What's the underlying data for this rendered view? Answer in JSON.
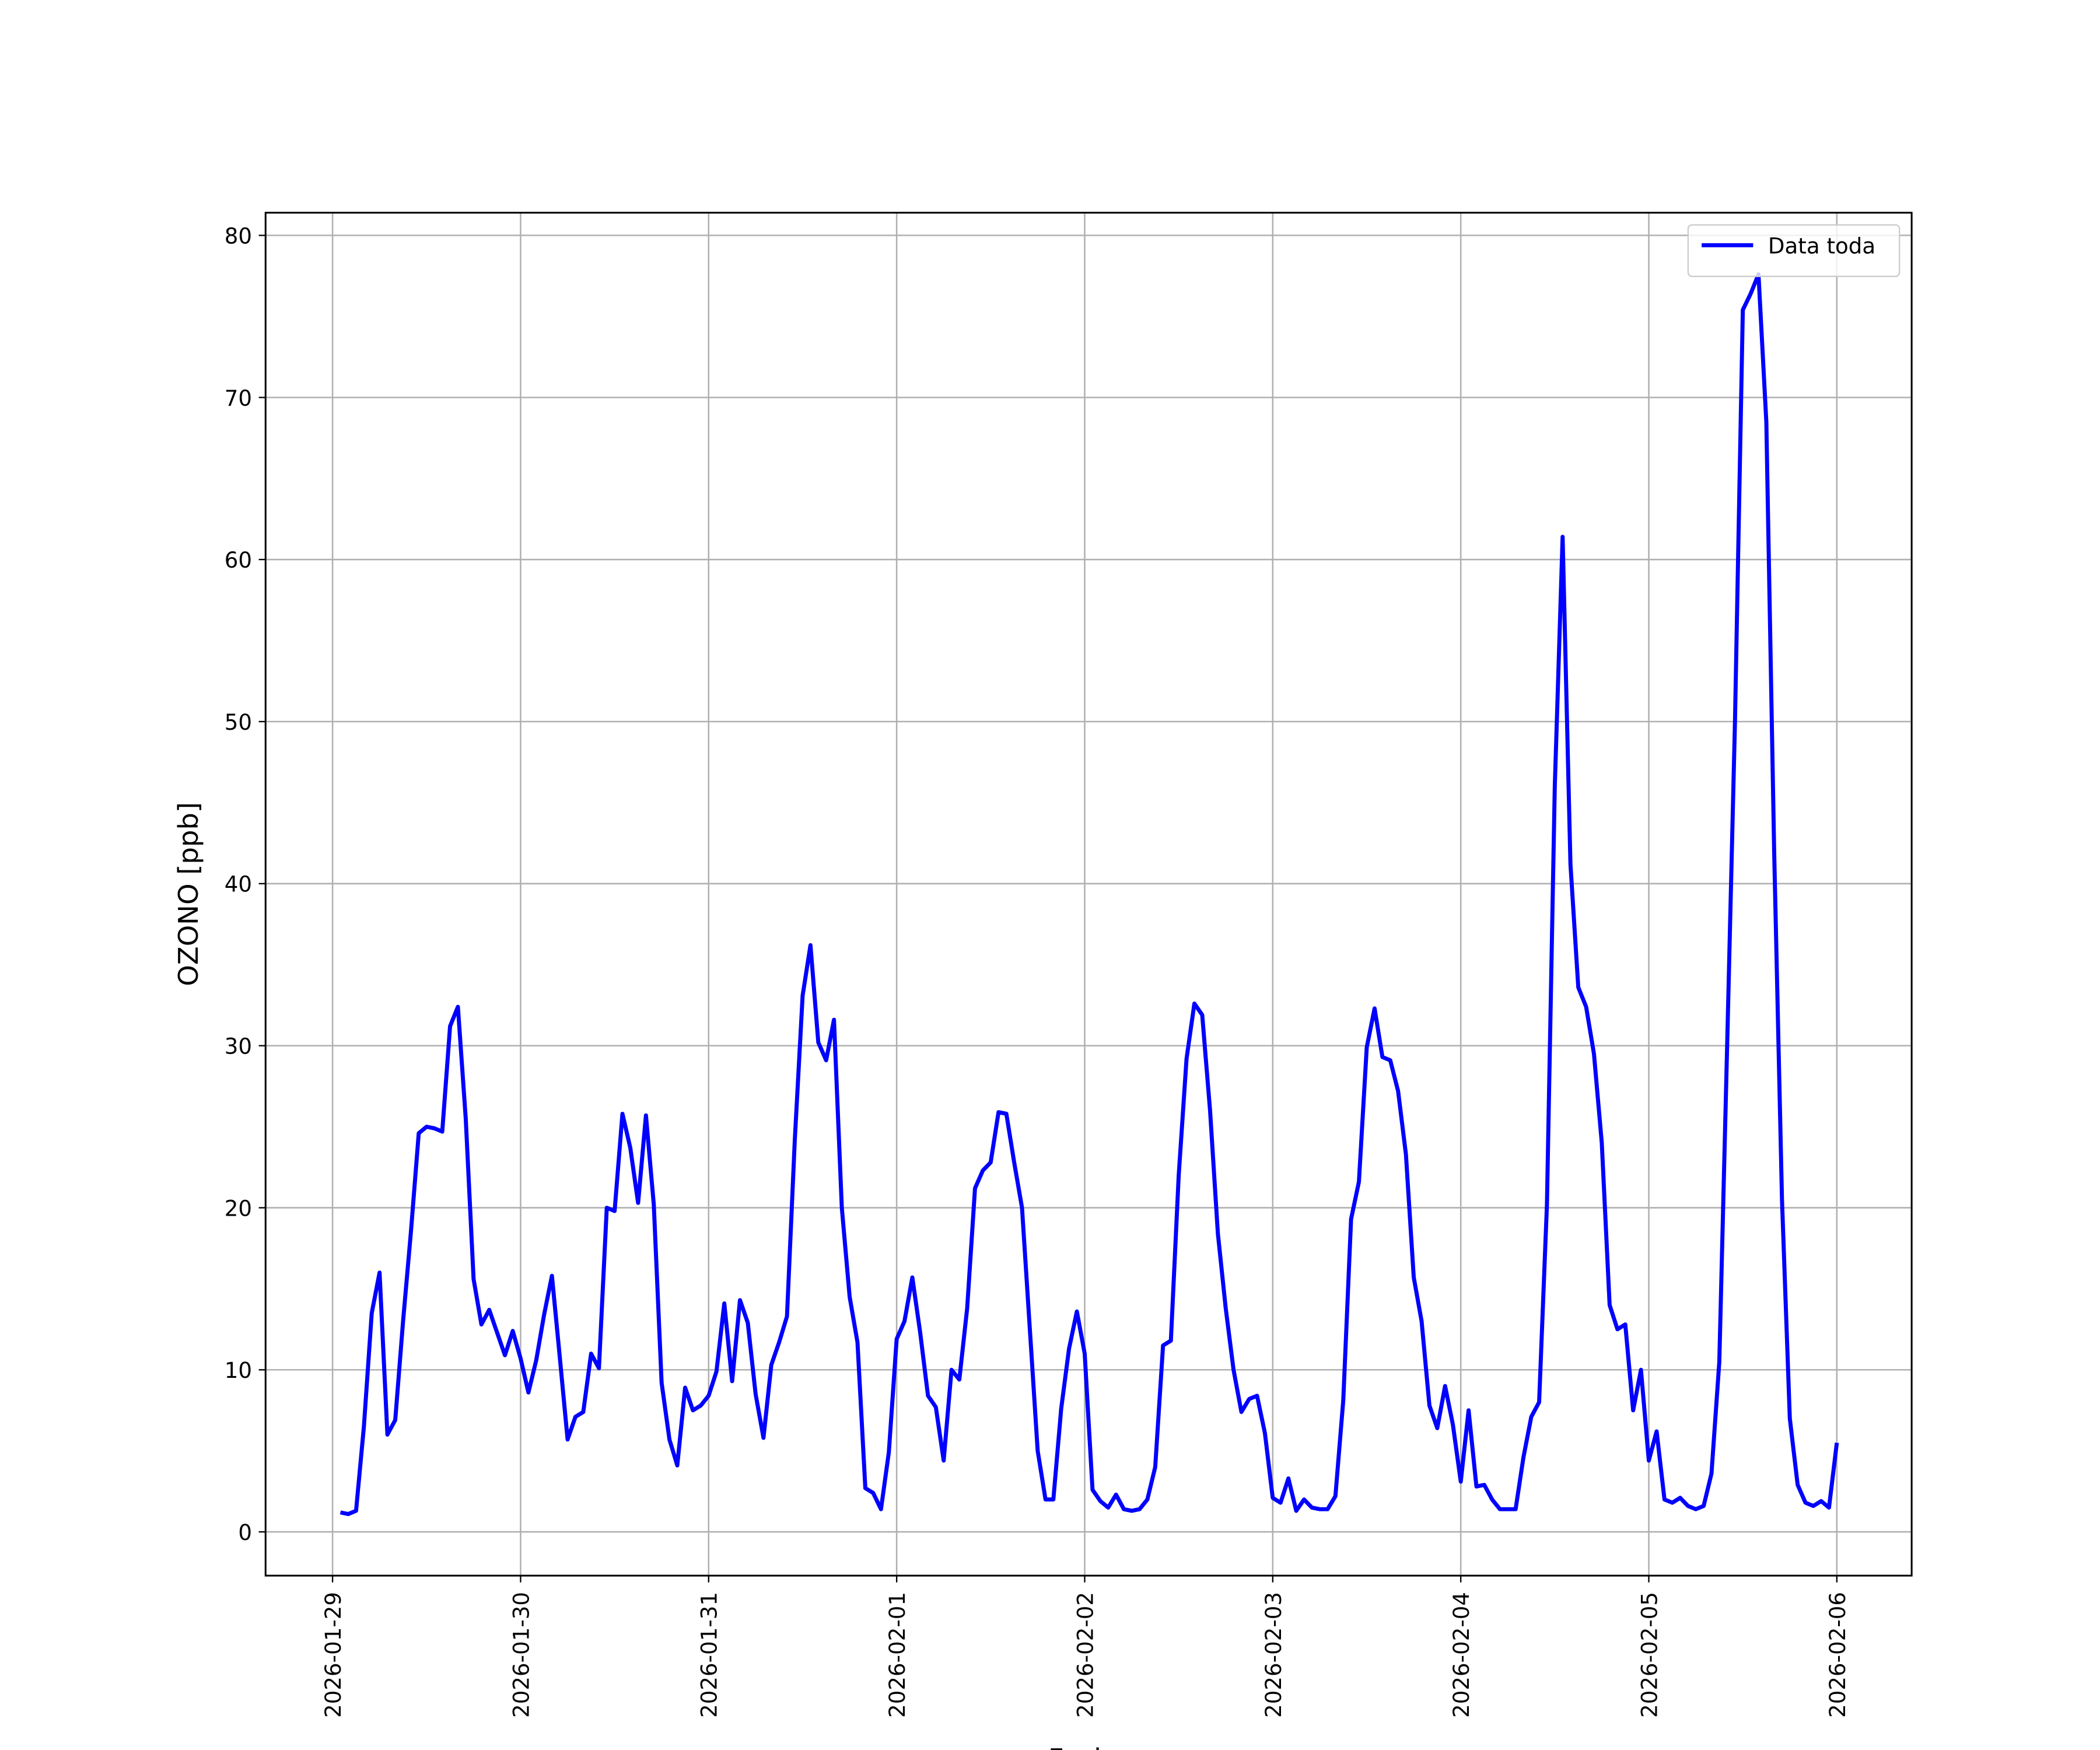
{
  "chart_data": {
    "type": "line",
    "xlabel": "Fecha",
    "ylabel": "OZONO [ppb]",
    "x": [
      "2026-01-29 01:00",
      "2026-01-29 02:00",
      "2026-01-29 03:00",
      "2026-01-29 04:00",
      "2026-01-29 05:00",
      "2026-01-29 06:00",
      "2026-01-29 07:00",
      "2026-01-29 08:00",
      "2026-01-29 09:00",
      "2026-01-29 10:00",
      "2026-01-29 11:00",
      "2026-01-29 12:00",
      "2026-01-29 13:00",
      "2026-01-29 14:00",
      "2026-01-29 15:00",
      "2026-01-29 16:00",
      "2026-01-29 17:00",
      "2026-01-29 18:00",
      "2026-01-29 19:00",
      "2026-01-29 20:00",
      "2026-01-29 21:00",
      "2026-01-29 22:00",
      "2026-01-29 23:00",
      "2026-01-30 00:00",
      "2026-01-30 01:00",
      "2026-01-30 02:00",
      "2026-01-30 03:00",
      "2026-01-30 04:00",
      "2026-01-30 05:00",
      "2026-01-30 06:00",
      "2026-01-30 07:00",
      "2026-01-30 08:00",
      "2026-01-30 09:00",
      "2026-01-30 10:00",
      "2026-01-30 11:00",
      "2026-01-30 12:00",
      "2026-01-30 13:00",
      "2026-01-30 14:00",
      "2026-01-30 15:00",
      "2026-01-30 16:00",
      "2026-01-30 17:00",
      "2026-01-30 18:00",
      "2026-01-30 19:00",
      "2026-01-30 20:00",
      "2026-01-30 21:00",
      "2026-01-30 22:00",
      "2026-01-30 23:00",
      "2026-01-31 00:00",
      "2026-01-31 01:00",
      "2026-01-31 02:00",
      "2026-01-31 03:00",
      "2026-01-31 04:00",
      "2026-01-31 05:00",
      "2026-01-31 06:00",
      "2026-01-31 07:00",
      "2026-01-31 08:00",
      "2026-01-31 09:00",
      "2026-01-31 10:00",
      "2026-01-31 11:00",
      "2026-01-31 12:00",
      "2026-01-31 13:00",
      "2026-01-31 14:00",
      "2026-01-31 15:00",
      "2026-01-31 16:00",
      "2026-01-31 17:00",
      "2026-01-31 18:00",
      "2026-01-31 19:00",
      "2026-01-31 20:00",
      "2026-01-31 21:00",
      "2026-01-31 22:00",
      "2026-01-31 23:00",
      "2026-02-01 00:00",
      "2026-02-01 01:00",
      "2026-02-01 02:00",
      "2026-02-01 03:00",
      "2026-02-01 04:00",
      "2026-02-01 05:00",
      "2026-02-01 06:00",
      "2026-02-01 07:00",
      "2026-02-01 08:00",
      "2026-02-01 09:00",
      "2026-02-01 10:00",
      "2026-02-01 11:00",
      "2026-02-01 12:00",
      "2026-02-01 13:00",
      "2026-02-01 14:00",
      "2026-02-01 15:00",
      "2026-02-01 16:00",
      "2026-02-01 17:00",
      "2026-02-01 18:00",
      "2026-02-01 19:00",
      "2026-02-01 20:00",
      "2026-02-01 21:00",
      "2026-02-01 22:00",
      "2026-02-01 23:00",
      "2026-02-02 00:00",
      "2026-02-02 01:00",
      "2026-02-02 02:00",
      "2026-02-02 03:00",
      "2026-02-02 04:00",
      "2026-02-02 05:00",
      "2026-02-02 06:00",
      "2026-02-02 07:00",
      "2026-02-02 08:00",
      "2026-02-02 09:00",
      "2026-02-02 10:00",
      "2026-02-02 11:00",
      "2026-02-02 12:00",
      "2026-02-02 13:00",
      "2026-02-02 14:00",
      "2026-02-02 15:00",
      "2026-02-02 16:00",
      "2026-02-02 17:00",
      "2026-02-02 18:00",
      "2026-02-02 19:00",
      "2026-02-02 20:00",
      "2026-02-02 21:00",
      "2026-02-02 22:00",
      "2026-02-02 23:00",
      "2026-02-03 00:00",
      "2026-02-03 01:00",
      "2026-02-03 02:00",
      "2026-02-03 03:00",
      "2026-02-03 04:00",
      "2026-02-03 05:00",
      "2026-02-03 06:00",
      "2026-02-03 07:00",
      "2026-02-03 08:00",
      "2026-02-03 09:00",
      "2026-02-03 10:00",
      "2026-02-03 11:00",
      "2026-02-03 12:00",
      "2026-02-03 13:00",
      "2026-02-03 14:00",
      "2026-02-03 15:00",
      "2026-02-03 16:00",
      "2026-02-03 17:00",
      "2026-02-03 18:00",
      "2026-02-03 19:00",
      "2026-02-03 20:00",
      "2026-02-03 21:00",
      "2026-02-03 22:00",
      "2026-02-03 23:00",
      "2026-02-04 00:00",
      "2026-02-04 01:00",
      "2026-02-04 02:00",
      "2026-02-04 03:00",
      "2026-02-04 04:00",
      "2026-02-04 05:00",
      "2026-02-04 06:00",
      "2026-02-04 07:00",
      "2026-02-04 08:00",
      "2026-02-04 09:00",
      "2026-02-04 10:00",
      "2026-02-04 11:00",
      "2026-02-04 12:00",
      "2026-02-04 13:00",
      "2026-02-04 14:00",
      "2026-02-04 15:00",
      "2026-02-04 16:00",
      "2026-02-04 17:00",
      "2026-02-04 18:00",
      "2026-02-04 19:00",
      "2026-02-04 20:00",
      "2026-02-04 21:00",
      "2026-02-04 22:00",
      "2026-02-04 23:00",
      "2026-02-05 00:00",
      "2026-02-05 01:00",
      "2026-02-05 02:00",
      "2026-02-05 03:00",
      "2026-02-05 04:00",
      "2026-02-05 05:00",
      "2026-02-05 06:00",
      "2026-02-05 07:00",
      "2026-02-05 08:00",
      "2026-02-05 09:00",
      "2026-02-05 10:00",
      "2026-02-05 11:00",
      "2026-02-05 12:00",
      "2026-02-05 13:00",
      "2026-02-05 14:00",
      "2026-02-05 15:00",
      "2026-02-05 16:00",
      "2026-02-05 17:00",
      "2026-02-05 18:00",
      "2026-02-05 19:00",
      "2026-02-05 20:00",
      "2026-02-05 21:00",
      "2026-02-05 22:00",
      "2026-02-05 23:00",
      "2026-02-06 00:00"
    ],
    "series": [
      {
        "name": "Data toda",
        "color": "#0000ff",
        "values": [
          1.2,
          1.1,
          1.3,
          6.5,
          13.5,
          16,
          6,
          6.9,
          13,
          18.5,
          24.6,
          25,
          24.9,
          24.7,
          31.2,
          32.4,
          25.5,
          15.6,
          12.8,
          13.7,
          12.3,
          10.9,
          12.4,
          10.7,
          8.6,
          10.6,
          13.4,
          15.8,
          10.8,
          5.7,
          7.1,
          7.4,
          11,
          10.1,
          20,
          19.8,
          25.8,
          23.7,
          20.3,
          25.7,
          20.2,
          9.2,
          5.7,
          4.1,
          8.9,
          7.5,
          7.8,
          8.4,
          9.9,
          14.1,
          9.3,
          14.3,
          12.9,
          8.5,
          5.8,
          10.3,
          11.7,
          13.3,
          24.2,
          33.1,
          36.2,
          30.2,
          29.1,
          31.6,
          20,
          14.5,
          11.7,
          2.7,
          2.4,
          1.4,
          4.9,
          11.9,
          13,
          15.7,
          12.3,
          8.4,
          7.7,
          4.4,
          10,
          9.4,
          13.8,
          21.2,
          22.3,
          22.8,
          25.9,
          25.8,
          22.8,
          20,
          12.5,
          5,
          2,
          2,
          7.6,
          11.3,
          13.6,
          11,
          2.6,
          1.9,
          1.5,
          2.3,
          1.4,
          1.3,
          1.4,
          2,
          4,
          11.5,
          11.8,
          22,
          29.2,
          32.6,
          31.9,
          26,
          18.4,
          13.8,
          10,
          7.4,
          8.2,
          8.4,
          6.1,
          2.1,
          1.8,
          3.3,
          1.3,
          2,
          1.5,
          1.4,
          1.4,
          2.2,
          8.1,
          19.3,
          21.6,
          29.9,
          32.3,
          29.3,
          29.1,
          27.2,
          23.3,
          15.7,
          13,
          7.8,
          6.4,
          9,
          6.6,
          3.1,
          7.5,
          2.8,
          2.9,
          2,
          1.4,
          1.4,
          1.4,
          4.6,
          7.1,
          8,
          20.2,
          46,
          61.4,
          41.2,
          33.6,
          32.4,
          29.5,
          24,
          14,
          12.5,
          12.8,
          7.5,
          10,
          4.4,
          6.2,
          2,
          1.8,
          2.1,
          1.6,
          1.4,
          1.6,
          3.6,
          10.5,
          30,
          50,
          75.4,
          76.4,
          77.6,
          68.5,
          42,
          20.5,
          7,
          2.9,
          1.8,
          1.6,
          1.9,
          1.5,
          5.5
        ]
      }
    ],
    "xlim": [
      "2026-01-28 15:27",
      "2026-02-06 09:33"
    ],
    "xticks": [
      "2026-01-29",
      "2026-01-30",
      "2026-01-31",
      "2026-02-01",
      "2026-02-02",
      "2026-02-03",
      "2026-02-04",
      "2026-02-05",
      "2026-02-06"
    ],
    "ylim": [
      -2.7,
      81.4
    ],
    "yticks": [
      0,
      10,
      20,
      30,
      40,
      50,
      60,
      70,
      80
    ],
    "grid": true,
    "legend": "upper right"
  }
}
